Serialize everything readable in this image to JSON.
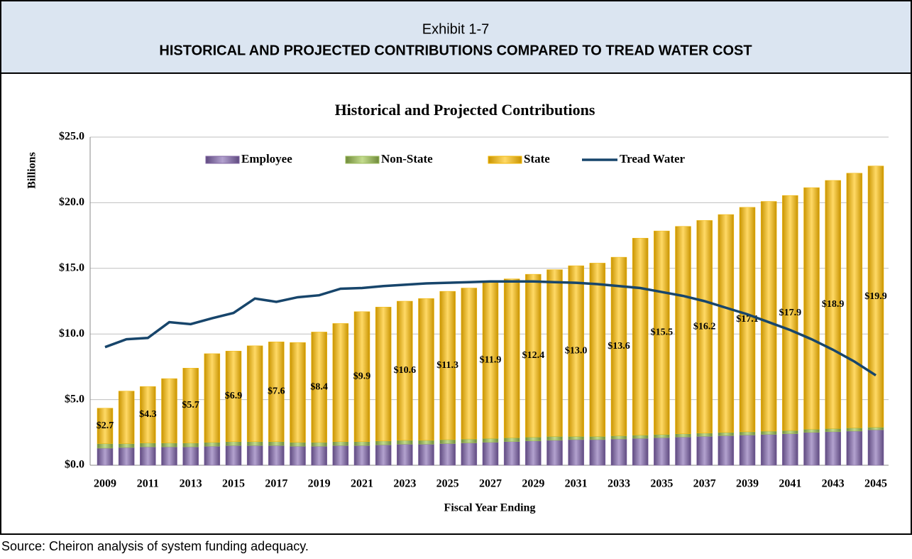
{
  "header": {
    "exhibit": "Exhibit 1-7",
    "title": "HISTORICAL AND PROJECTED CONTRIBUTIONS COMPARED TO TREAD WATER COST"
  },
  "source": "Source: Cheiron analysis of system funding adequacy.",
  "chart_data": {
    "type": "bar",
    "stacked": true,
    "title": "Historical and Projected Contributions",
    "ylabel": "Billions",
    "xlabel": "Fiscal Year Ending",
    "categories": [
      "2009",
      null,
      "2011",
      null,
      "2013",
      null,
      "2015",
      null,
      "2017",
      null,
      "2019",
      null,
      "2021",
      null,
      "2023",
      null,
      "2025",
      null,
      "2027",
      null,
      "2029",
      null,
      "2031",
      null,
      "2033",
      null,
      "2035",
      null,
      "2037",
      null,
      "2039",
      null,
      "2041",
      null,
      "2043",
      null,
      "2045"
    ],
    "ylim": [
      0,
      25
    ],
    "yticks": [
      {
        "value": 0,
        "label": "$0.0"
      },
      {
        "value": 5,
        "label": "$5.0"
      },
      {
        "value": 10,
        "label": "$10.0"
      },
      {
        "value": 15,
        "label": "$15.0"
      },
      {
        "value": 20,
        "label": "$20.0"
      },
      {
        "value": 25,
        "label": "$25.0"
      }
    ],
    "grid": true,
    "legend": "top",
    "series": [
      {
        "name": "Employee",
        "color": "#8064a2",
        "values": [
          1.3,
          1.35,
          1.4,
          1.4,
          1.4,
          1.45,
          1.5,
          1.5,
          1.5,
          1.45,
          1.45,
          1.5,
          1.5,
          1.55,
          1.6,
          1.6,
          1.65,
          1.7,
          1.75,
          1.8,
          1.85,
          1.9,
          1.95,
          1.95,
          2.0,
          2.05,
          2.1,
          2.15,
          2.2,
          2.25,
          2.3,
          2.35,
          2.4,
          2.5,
          2.55,
          2.6,
          2.7
        ]
      },
      {
        "name": "Non-State",
        "color": "#9bbb59",
        "values": [
          0.35,
          0.3,
          0.3,
          0.3,
          0.3,
          0.3,
          0.3,
          0.3,
          0.3,
          0.3,
          0.3,
          0.3,
          0.3,
          0.3,
          0.3,
          0.3,
          0.3,
          0.3,
          0.3,
          0.3,
          0.3,
          0.3,
          0.25,
          0.25,
          0.25,
          0.25,
          0.25,
          0.25,
          0.25,
          0.25,
          0.25,
          0.25,
          0.25,
          0.25,
          0.25,
          0.25,
          0.2
        ]
      },
      {
        "name": "State",
        "color": "#f2b705",
        "values": [
          2.7,
          4.0,
          4.3,
          4.9,
          5.7,
          6.75,
          6.9,
          7.3,
          7.6,
          7.6,
          8.4,
          9.0,
          9.9,
          10.2,
          10.6,
          10.8,
          11.3,
          11.5,
          11.9,
          12.1,
          12.4,
          12.7,
          13.0,
          13.2,
          13.6,
          15.0,
          15.5,
          15.8,
          16.2,
          16.6,
          17.1,
          17.5,
          17.9,
          18.4,
          18.9,
          19.4,
          19.9
        ],
        "value_labels": [
          "$2.7",
          null,
          "$4.3",
          null,
          "$5.7",
          null,
          "$6.9",
          null,
          "$7.6",
          null,
          "$8.4",
          null,
          "$9.9",
          null,
          "$10.6",
          null,
          "$11.3",
          null,
          "$11.9",
          null,
          "$12.4",
          null,
          "$13.0",
          null,
          "$13.6",
          null,
          "$15.5",
          null,
          "$16.2",
          null,
          "$17.1",
          null,
          "$17.9",
          null,
          "$18.9",
          null,
          "$19.9"
        ]
      },
      {
        "name": "Tread Water",
        "type": "line",
        "color": "#17456b",
        "values": [
          9.0,
          9.6,
          9.7,
          10.9,
          10.75,
          11.2,
          11.6,
          12.7,
          12.45,
          12.8,
          12.95,
          13.45,
          13.5,
          13.65,
          13.75,
          13.85,
          13.9,
          13.95,
          14.0,
          14.0,
          14.0,
          13.95,
          13.9,
          13.8,
          13.65,
          13.5,
          13.2,
          12.9,
          12.5,
          12.0,
          11.5,
          10.9,
          10.3,
          9.6,
          8.8,
          7.9,
          6.85
        ]
      }
    ]
  }
}
